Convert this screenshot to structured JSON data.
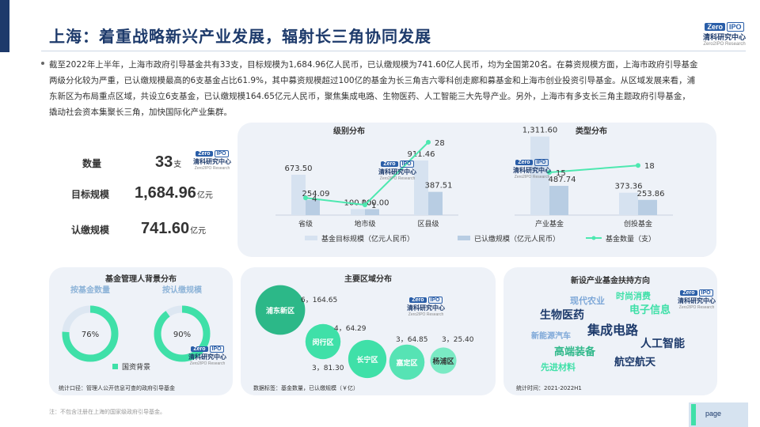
{
  "title": "上海：着重战略新兴产业发展，辐射长三角协同发展",
  "logo": {
    "zero": "Zero",
    "ipo": "IPO",
    "cn": "清科研究中心",
    "en": "Zero2IPO Research"
  },
  "intro": "截至2022年上半年，上海市政府引导基金共有33支，目标规模为1,684.96亿人民币，已认缴规模为741.60亿人民币，均为全国第20名。在募资规模方面，上海市政府引导基金两级分化较为严重，已认缴规模最高的6支基金占比61.9%，其中募资规模超过100亿的基金为长三角吉六零科创走廊和募基金和上海市创业投资引导基金。从区域发展来看，浦东新区为布局重点区域，共设立6支基金，已认缴规模164.65亿元人民币，聚焦集成电路、生物医药、人工智能三大先导产业。另外，上海市有多支长三角主题政府引导基金，撬动社会资本集聚长三角，加快国际化产业集群。",
  "stats": [
    {
      "label": "数量",
      "value": "33",
      "unit": "支"
    },
    {
      "label": "目标规模",
      "value": "1,684.96",
      "unit": "亿元"
    },
    {
      "label": "认缴规模",
      "value": "741.60",
      "unit": "亿元"
    }
  ],
  "legend": {
    "target": "基金目标规模（亿元人民币）",
    "subscribed": "已认缴规模（亿元人民币）",
    "count": "基金数量（支）"
  },
  "colors": {
    "target": "#d6e2f0",
    "subscribed": "#b8cde3",
    "line": "#4de8b0",
    "navy": "#1d3a6b",
    "green": "#3fe0a8",
    "pie_bg": "#dde7f2"
  },
  "chart_data": [
    {
      "type": "bar",
      "title": "级别分布",
      "categories": [
        "省级",
        "地市级",
        "区县级"
      ],
      "series": [
        {
          "name": "基金目标规模（亿元人民币）",
          "values": [
            673.5,
            100.0,
            911.46
          ],
          "labels": [
            "673.50",
            "100.00",
            "911.46"
          ]
        },
        {
          "name": "已认缴规模（亿元人民币）",
          "values": [
            254.09,
            100.0,
            387.51
          ],
          "labels": [
            "254.09",
            "100.00",
            "387.51"
          ]
        },
        {
          "name": "基金数量（支）",
          "values": [
            4,
            1,
            28
          ],
          "labels": [
            "4",
            "1",
            "28"
          ]
        }
      ]
    },
    {
      "type": "bar",
      "title": "类型分布",
      "categories": [
        "产业基金",
        "创投基金"
      ],
      "series": [
        {
          "name": "基金目标规模（亿元人民币）",
          "values": [
            1311.6,
            373.36
          ],
          "labels": [
            "1,311.60",
            "373.36"
          ]
        },
        {
          "name": "已认缴规模（亿元人民币）",
          "values": [
            487.74,
            253.86
          ],
          "labels": [
            "487.74",
            "253.86"
          ]
        },
        {
          "name": "基金数量（支）",
          "values": [
            15,
            18
          ],
          "labels": [
            "15",
            "18"
          ]
        }
      ]
    },
    {
      "type": "pie",
      "title": "基金管理人背景分布",
      "charts": [
        {
          "name": "按基金数量",
          "value": 76,
          "label": "76%"
        },
        {
          "name": "按认缴规模",
          "value": 90,
          "label": "90%"
        }
      ],
      "legend": "国资背景",
      "footnote": "统计口径：管理人公开信息可查的政府引导基金"
    },
    {
      "type": "scatter",
      "title": "主要区域分布",
      "points": [
        {
          "name": "浦东新区",
          "count": 6,
          "size": 164.65,
          "label": "6，164.65"
        },
        {
          "name": "闵行区",
          "count": 4,
          "size": 64.29,
          "label": "4，64.29"
        },
        {
          "name": "长宁区",
          "count": 3,
          "size": 81.3,
          "label": "3，81.30"
        },
        {
          "name": "嘉定区",
          "count": 3,
          "size": 64.85,
          "label": "3，64.85"
        },
        {
          "name": "杨浦区",
          "count": 3,
          "size": 25.4,
          "label": "3，25.40"
        }
      ],
      "footnote": "数据标签：基金数量，已认缴规模（￥亿）"
    }
  ],
  "wordcloud": {
    "title": "新设产业基金扶持方向",
    "words": [
      "现代农业",
      "时尚消费",
      "生物医药",
      "电子信息",
      "新能源汽车",
      "集成电路",
      "高端装备",
      "人工智能",
      "先进材料",
      "航空航天"
    ],
    "footnote": "统计时间：2021-2022H1"
  },
  "bottom_note": "注：不包含注册在上海的国家级政府引导基金。",
  "page_label": "page"
}
